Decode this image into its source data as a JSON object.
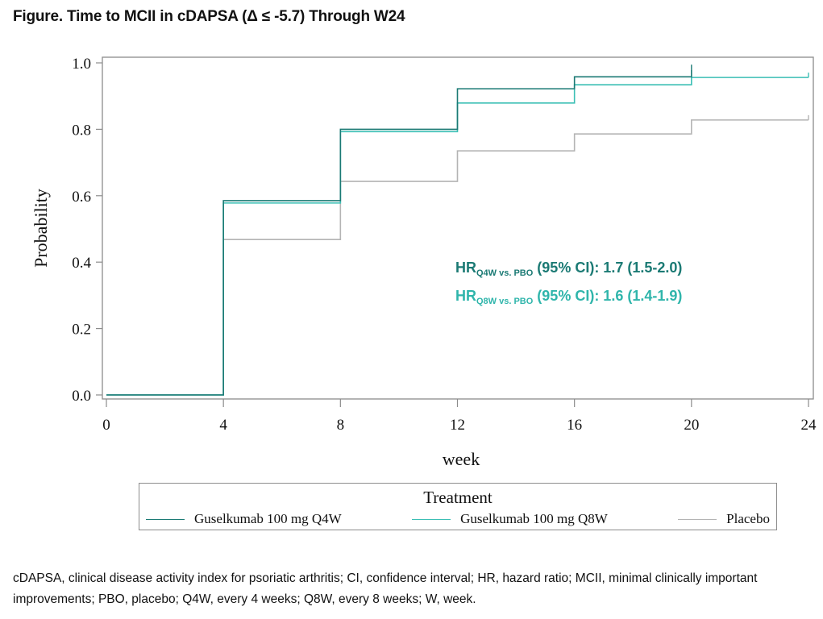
{
  "figure_title": "Figure. Time to MCII in cDAPSA (Δ ≤ -5.7) Through W24",
  "chart_data": {
    "type": "line",
    "subtype": "step (Kaplan-Meier style cumulative probability)",
    "title": "Figure. Time to MCII in cDAPSA (Δ ≤ -5.7) Through W24",
    "xlabel": "week",
    "ylabel": "Probability",
    "xlim": [
      0,
      24
    ],
    "ylim": [
      0.0,
      1.0
    ],
    "xticks": [
      0,
      4,
      8,
      12,
      16,
      20,
      24
    ],
    "yticks": [
      0.0,
      0.2,
      0.4,
      0.6,
      0.8,
      1.0
    ],
    "ytick_labels": [
      "0.0",
      "0.2",
      "0.4",
      "0.6",
      "0.8",
      "1.0"
    ],
    "grid": false,
    "legend_title": "Treatment",
    "legend_position": "bottom",
    "series": [
      {
        "name": "Guselkumab 100 mg Q4W",
        "color": "#1b7a74",
        "x": [
          0,
          4,
          8,
          12,
          16,
          20
        ],
        "y": [
          0.0,
          0.585,
          0.8,
          0.922,
          0.958,
          0.98
        ],
        "end_x": 20
      },
      {
        "name": "Guselkumab 100 mg Q8W",
        "color": "#3bbfb5",
        "x": [
          0,
          4,
          8,
          12,
          16,
          20
        ],
        "y": [
          0.0,
          0.578,
          0.793,
          0.879,
          0.934,
          0.956
        ],
        "end_x": 24
      },
      {
        "name": "Placebo",
        "color": "#b4b4b4",
        "x": [
          0,
          4,
          8,
          12,
          16,
          20
        ],
        "y": [
          0.0,
          0.468,
          0.643,
          0.735,
          0.786,
          0.828
        ],
        "end_x": 24
      }
    ],
    "annotations": [
      {
        "prefix": "HR",
        "subscript": "Q4W vs. PBO",
        "text": " (95% CI): 1.7 (1.5-2.0)",
        "color": "#1b7a74"
      },
      {
        "prefix": "HR",
        "subscript": "Q8W vs. PBO",
        "text": " (95% CI): 1.6 (1.4-1.9)",
        "color": "#2fb5ab"
      }
    ]
  },
  "footnote": "cDAPSA, clinical disease activity index for psoriatic arthritis; CI, confidence interval; HR, hazard ratio; MCII, minimal clinically important improvements; PBO, placebo; Q4W, every 4 weeks; Q8W, every 8 weeks; W, week."
}
